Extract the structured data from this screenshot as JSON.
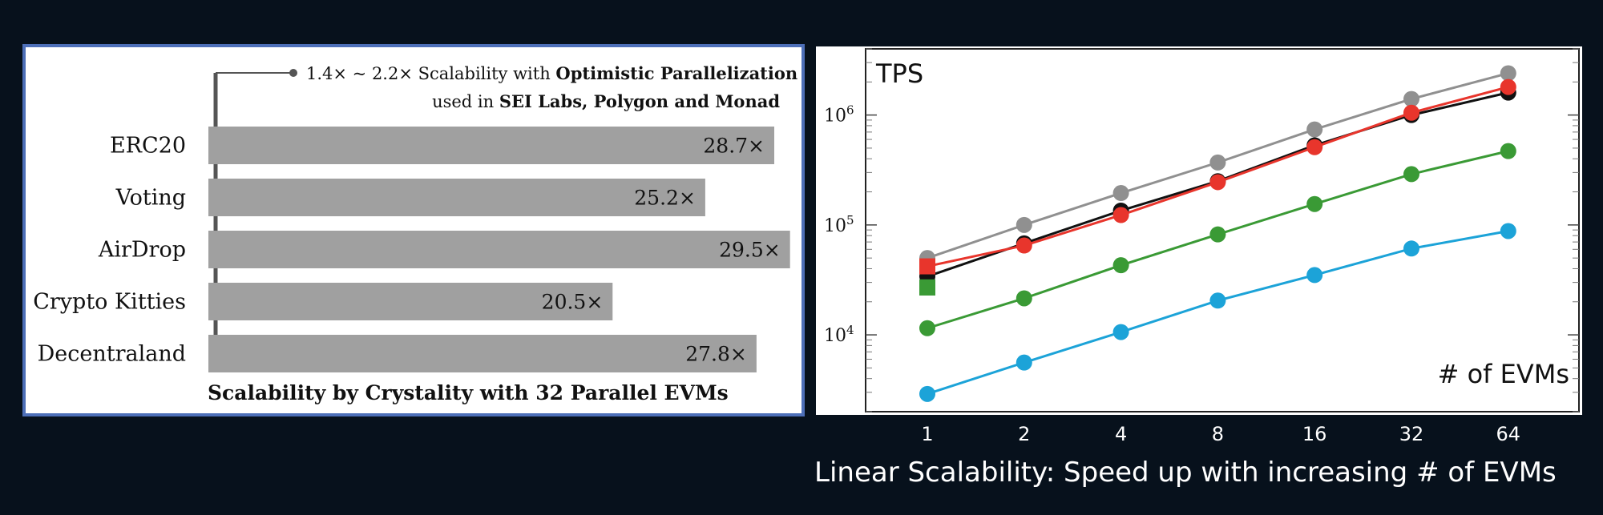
{
  "chart_data": [
    {
      "type": "bar",
      "orientation": "horizontal",
      "title": "Scalability by Crystality with 32 Parallel EVMs",
      "annotation": {
        "prefix": "1.4× ~ 2.2× Scalability with ",
        "bold1": "Optimistic Parallelization",
        "line2_prefix": "used in ",
        "bold2": "SEI Labs, Polygon and Monad"
      },
      "categories": [
        "ERC20",
        "Voting",
        "AirDrop",
        "Crypto Kitties",
        "Decentraland"
      ],
      "values": [
        28.7,
        25.2,
        29.5,
        20.5,
        27.8
      ],
      "value_labels": [
        "28.7×",
        "25.2×",
        "29.5×",
        "20.5×",
        "27.8×"
      ],
      "bar_color": "#a0a0a0",
      "xlim": [
        0,
        30
      ]
    },
    {
      "type": "line",
      "yscale": "log",
      "ylabel": "TPS",
      "xlabel": "# of EVMs",
      "x": [
        1,
        2,
        4,
        8,
        16,
        32,
        64
      ],
      "x_tick_labels": [
        "1",
        "2",
        "4",
        "8",
        "16",
        "32",
        "64"
      ],
      "ylim": [
        2000,
        4000000
      ],
      "y_ticks": [
        10000,
        100000,
        1000000
      ],
      "caption": "Linear Scalability: Speed up with increasing # of EVMs",
      "series": [
        {
          "color": "#909090",
          "marker": "circle",
          "values": [
            50000,
            100000,
            195000,
            370000,
            740000,
            1400000,
            2400000
          ]
        },
        {
          "color": "#111111",
          "marker": "circle",
          "values": [
            34000,
            68000,
            135000,
            250000,
            530000,
            1000000,
            1600000
          ]
        },
        {
          "color": "#e8352c",
          "marker": "square",
          "values": [
            42000,
            65000,
            123000,
            245000,
            510000,
            1050000,
            1800000
          ]
        },
        {
          "color": "#3a9a35",
          "marker": "square",
          "values": [
            27000,
            21500,
            43000,
            82000,
            155000,
            290000,
            470000
          ]
        },
        {
          "color": "#1ca3d8",
          "marker": "circle",
          "values": [
            2900,
            5600,
            10600,
            20500,
            35000,
            61000,
            88000
          ]
        }
      ],
      "first_point_alt": [
        {
          "series": 3,
          "value": 11500,
          "marker": "circle"
        }
      ],
      "grid": "minor-tick-marks"
    }
  ],
  "page": {
    "caption": "Linear Scalability: Speed up with increasing # of EVMs"
  }
}
